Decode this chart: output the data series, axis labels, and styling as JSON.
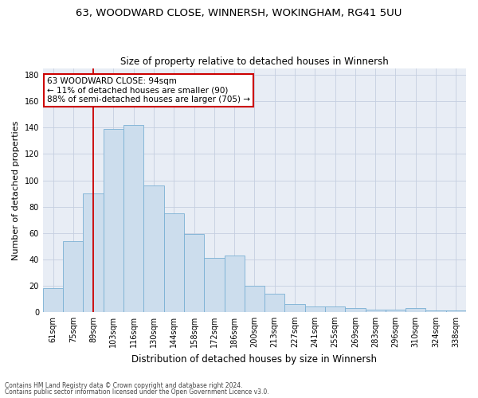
{
  "title_line1": "63, WOODWARD CLOSE, WINNERSH, WOKINGHAM, RG41 5UU",
  "title_line2": "Size of property relative to detached houses in Winnersh",
  "xlabel": "Distribution of detached houses by size in Winnersh",
  "ylabel": "Number of detached properties",
  "bar_labels": [
    "61sqm",
    "75sqm",
    "89sqm",
    "103sqm",
    "116sqm",
    "130sqm",
    "144sqm",
    "158sqm",
    "172sqm",
    "186sqm",
    "200sqm",
    "213sqm",
    "227sqm",
    "241sqm",
    "255sqm",
    "269sqm",
    "283sqm",
    "296sqm",
    "310sqm",
    "324sqm",
    "338sqm"
  ],
  "bar_values": [
    18,
    54,
    90,
    139,
    142,
    96,
    75,
    59,
    41,
    43,
    20,
    14,
    6,
    4,
    4,
    3,
    2,
    2,
    3,
    1,
    1
  ],
  "bar_color": "#ccdded",
  "bar_edge_color": "#7ab0d4",
  "red_line_x": 2.5,
  "annotation_text_line1": "63 WOODWARD CLOSE: 94sqm",
  "annotation_text_line2": "← 11% of detached houses are smaller (90)",
  "annotation_text_line3": "88% of semi-detached houses are larger (705) →",
  "annotation_box_facecolor": "#ffffff",
  "annotation_box_edgecolor": "#cc0000",
  "ylim": [
    0,
    185
  ],
  "yticks": [
    0,
    20,
    40,
    60,
    80,
    100,
    120,
    140,
    160,
    180
  ],
  "grid_color": "#c5cfe0",
  "axes_bg_color": "#e8edf5",
  "fig_bg_color": "#ffffff",
  "title1_fontsize": 9.5,
  "title2_fontsize": 8.5,
  "ylabel_fontsize": 8,
  "xlabel_fontsize": 8.5,
  "tick_fontsize": 7,
  "ann_fontsize": 7.5,
  "footnote1": "Contains HM Land Registry data © Crown copyright and database right 2024.",
  "footnote2": "Contains public sector information licensed under the Open Government Licence v3.0.",
  "footnote_fontsize": 5.5
}
